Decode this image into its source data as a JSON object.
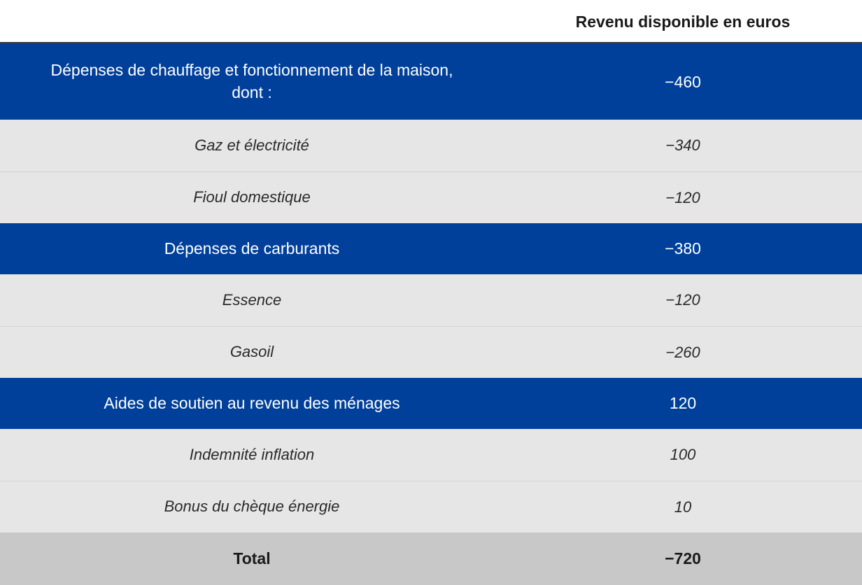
{
  "header": {
    "column_title": "Revenu disponible en euros"
  },
  "rows": [
    {
      "label": "Dépenses de chauffage et fonctionnement de la maison,\ndont :",
      "value": "−460"
    },
    {
      "label": "Gaz et électricité",
      "value": "−340"
    },
    {
      "label": "Fioul domestique",
      "value": "−120"
    },
    {
      "label": "Dépenses de carburants",
      "value": "−380"
    },
    {
      "label": "Essence",
      "value": "−120"
    },
    {
      "label": "Gasoil",
      "value": "−260"
    },
    {
      "label": "Aides de soutien au revenu des ménages",
      "value": "120"
    },
    {
      "label": "Indemnité inflation",
      "value": "100"
    },
    {
      "label": "Bonus du chèque énergie",
      "value": "10"
    },
    {
      "label": "Total",
      "value": "−720"
    }
  ],
  "colors": {
    "category_bg": "#00409a",
    "subitem_bg": "#e6e6e6",
    "total_bg": "#c8c8c8",
    "header_rule": "#333a44"
  }
}
